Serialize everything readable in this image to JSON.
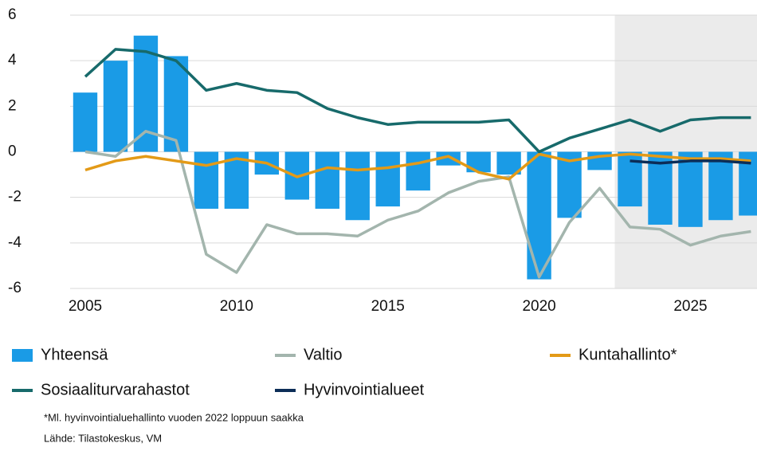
{
  "chart_data": {
    "type": "bar_line",
    "x": [
      2005,
      2006,
      2007,
      2008,
      2009,
      2010,
      2011,
      2012,
      2013,
      2014,
      2015,
      2016,
      2017,
      2018,
      2019,
      2020,
      2021,
      2022,
      2023,
      2024,
      2025,
      2026,
      2027
    ],
    "series": [
      {
        "name": "Yhteensä",
        "kind": "bar",
        "color": "#1a9be6",
        "values": [
          2.6,
          4.0,
          5.1,
          4.2,
          -2.5,
          -2.5,
          -1.0,
          -2.1,
          -2.5,
          -3.0,
          -2.4,
          -1.7,
          -0.6,
          -0.9,
          -1.0,
          -5.6,
          -2.9,
          -0.8,
          -2.4,
          -3.2,
          -3.3,
          -3.0,
          -2.8
        ]
      },
      {
        "name": "Valtio",
        "kind": "line",
        "color": "#a3b5ad",
        "values": [
          0.0,
          -0.2,
          0.9,
          0.5,
          -4.5,
          -5.3,
          -3.2,
          -3.6,
          -3.6,
          -3.7,
          -3.0,
          -2.6,
          -1.8,
          -1.3,
          -1.1,
          -5.5,
          -3.1,
          -1.6,
          -3.3,
          -3.4,
          -4.1,
          -3.7,
          -3.5
        ]
      },
      {
        "name": "Kuntahallinto*",
        "kind": "line",
        "color": "#e39a17",
        "values": [
          -0.8,
          -0.4,
          -0.2,
          -0.4,
          -0.6,
          -0.3,
          -0.5,
          -1.1,
          -0.7,
          -0.8,
          -0.7,
          -0.5,
          -0.2,
          -0.9,
          -1.2,
          -0.1,
          -0.4,
          -0.2,
          -0.1,
          -0.2,
          -0.3,
          -0.3,
          -0.4
        ]
      },
      {
        "name": "Sosiaaliturvarahastot",
        "kind": "line",
        "color": "#176a6b",
        "values": [
          3.3,
          4.5,
          4.4,
          4.0,
          2.7,
          3.0,
          2.7,
          2.6,
          1.9,
          1.5,
          1.2,
          1.3,
          1.3,
          1.3,
          1.4,
          0.0,
          0.6,
          1.0,
          1.4,
          0.9,
          1.4,
          1.5,
          1.5
        ]
      },
      {
        "name": "Hyvinvointialueet",
        "kind": "line",
        "color": "#0c2d57",
        "values": [
          null,
          null,
          null,
          null,
          null,
          null,
          null,
          null,
          null,
          null,
          null,
          null,
          null,
          null,
          null,
          null,
          null,
          null,
          -0.4,
          -0.5,
          -0.4,
          -0.4,
          -0.5
        ]
      }
    ],
    "xlim": [
      2004.5,
      2027.2
    ],
    "xticks": [
      2005,
      2010,
      2015,
      2020,
      2025
    ],
    "ylim": [
      -6,
      6
    ],
    "yticks": [
      -6,
      -4,
      -2,
      0,
      2,
      4,
      6
    ],
    "grid": true,
    "forecast_start": 2022.5,
    "forecast_color": "#ebebeb",
    "notes": [
      "*Ml. hyvinvointialuehallinto vuoden 2022 loppuun saakka",
      "Lähde: Tilastokeskus, VM"
    ]
  }
}
